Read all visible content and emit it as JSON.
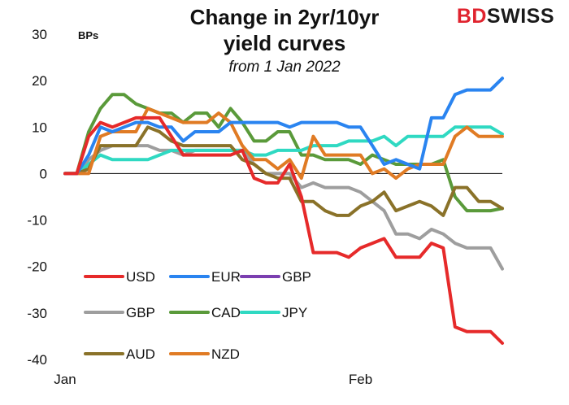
{
  "logo": {
    "part1": "BD",
    "part2": "SWISS"
  },
  "chart_data": {
    "type": "line",
    "title_lines": [
      "Change in 2yr/10yr",
      "yield curves"
    ],
    "subtitle": "from 1 Jan 2022",
    "ylabel": "BPs",
    "ylim": [
      -40,
      30
    ],
    "yticks": [
      -40,
      -30,
      -20,
      -10,
      0,
      10,
      20,
      30
    ],
    "xlim": [
      0,
      37
    ],
    "xtick_positions": [
      0,
      25
    ],
    "xtick_labels": [
      "Jan",
      "Feb"
    ],
    "legend_position": "bottom-left",
    "series": [
      {
        "name": "USD",
        "color": "#e62a2a",
        "values": [
          0,
          0,
          8,
          11,
          10,
          11,
          12,
          12,
          12,
          8,
          4,
          4,
          4,
          4,
          4,
          5,
          -1,
          -2,
          -2,
          2,
          -5,
          -17,
          -17,
          -17,
          -18,
          -16,
          -15,
          -14,
          -18,
          -18,
          -18,
          -15,
          -16,
          -33,
          -34,
          -34,
          -34,
          -36.5
        ]
      },
      {
        "name": "EUR",
        "color": "#2a84f0",
        "values": [
          0,
          0,
          4,
          10,
          9,
          10,
          11,
          11,
          10,
          10,
          7,
          9,
          9,
          9,
          11,
          11,
          11,
          11,
          11,
          10,
          11,
          11,
          11,
          11,
          10,
          10,
          6,
          2,
          3,
          2,
          1,
          12,
          12,
          17,
          18,
          18,
          18,
          20.5
        ]
      },
      {
        "name": "GBP",
        "color": "#7b3fb0",
        "legend_only": true,
        "values": []
      },
      {
        "name": "GBP",
        "color": "#9e9e9e",
        "values": [
          0,
          0,
          3,
          5,
          6,
          6,
          6,
          6,
          5,
          5,
          4,
          5,
          5,
          5,
          5,
          5,
          2,
          0,
          0,
          0,
          -3,
          -2,
          -3,
          -3,
          -3,
          -4,
          -6,
          -8,
          -13,
          -13,
          -14,
          -12,
          -13,
          -15,
          -16,
          -16,
          -16,
          -20.5
        ]
      },
      {
        "name": "CAD",
        "color": "#5a9a3a",
        "values": [
          0,
          0,
          9,
          14,
          17,
          17,
          15,
          14,
          13,
          13,
          11,
          13,
          13,
          10,
          14,
          11,
          7,
          7,
          9,
          9,
          4,
          4,
          3,
          3,
          3,
          2,
          4,
          3,
          2,
          2,
          2,
          2,
          3,
          -5,
          -8,
          -8,
          -8,
          -7.5
        ]
      },
      {
        "name": "JPY",
        "color": "#2fd9c2",
        "values": [
          0,
          0,
          2,
          4,
          3,
          3,
          3,
          3,
          4,
          5,
          5,
          5,
          5,
          5,
          5,
          5,
          4,
          4,
          5,
          5,
          5,
          6,
          6,
          6,
          7,
          7,
          7,
          8,
          6,
          8,
          8,
          8,
          8,
          10,
          10,
          10,
          10,
          8.5
        ]
      },
      {
        "name": "AUD",
        "color": "#8a7229",
        "values": [
          0,
          0,
          1,
          6,
          6,
          6,
          6,
          10,
          9,
          7,
          6,
          6,
          6,
          6,
          6,
          3,
          2,
          0,
          -1,
          -1,
          -6,
          -6,
          -8,
          -9,
          -9,
          -7,
          -6,
          -4,
          -8,
          -7,
          -6,
          -7,
          -9,
          -3,
          -3,
          -6,
          -6,
          -7.5
        ]
      },
      {
        "name": "NZD",
        "color": "#e07b24",
        "values": [
          0,
          0,
          0,
          8,
          9,
          9,
          9,
          14,
          13,
          12,
          11,
          11,
          11,
          13,
          11,
          6,
          3,
          3,
          1,
          3,
          -1,
          8,
          4,
          4,
          4,
          4,
          0,
          1,
          -1,
          1,
          2,
          2,
          2,
          8,
          10,
          8,
          8,
          8
        ]
      }
    ],
    "legend_rows": [
      [
        0,
        1,
        2
      ],
      [
        3,
        4,
        5
      ],
      [
        6,
        7
      ]
    ]
  }
}
